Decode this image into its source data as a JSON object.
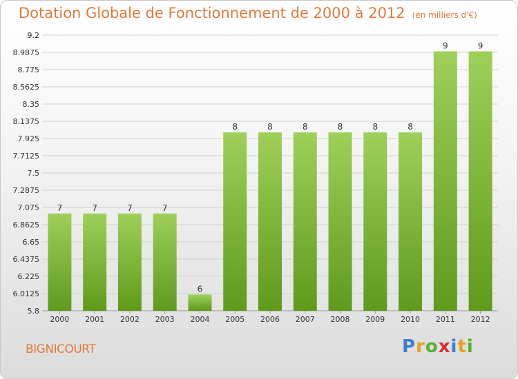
{
  "header": {
    "title": "Dotation Globale de Fonctionnement de 2000 à 2012",
    "unit": "(en milliers d'€)"
  },
  "footer": {
    "commune": "BIGNICOURT",
    "brand": [
      "P",
      "r",
      "o",
      "x",
      "i",
      "t",
      "i"
    ],
    "brand_colors": [
      "#3a7fd0",
      "#e8a020",
      "#58b030",
      "#d83030",
      "#3a7fd0",
      "#e8a020",
      "#58b030"
    ]
  },
  "colors": {
    "title": "#e07a3c",
    "bar_top": "#9ed05a",
    "bar_bottom": "#5f9a1c",
    "grid": "#d0d0d0",
    "axis_text": "#333333"
  },
  "chart_data": {
    "type": "bar",
    "categories": [
      "2000",
      "2001",
      "2002",
      "2003",
      "2004",
      "2005",
      "2006",
      "2007",
      "2008",
      "2009",
      "2010",
      "2011",
      "2012"
    ],
    "values": [
      7,
      7,
      7,
      7,
      6,
      8,
      8,
      8,
      8,
      8,
      8,
      9,
      9
    ],
    "bar_values": [
      7.0,
      7.0,
      7.0,
      7.0,
      6.0,
      8.0,
      8.0,
      8.0,
      8.0,
      8.0,
      8.0,
      9.0,
      9.0
    ],
    "data_labels": [
      "7",
      "7",
      "7",
      "7",
      "6",
      "8",
      "8",
      "8",
      "8",
      "8",
      "8",
      "9",
      "9"
    ],
    "y_ticks": [
      "5.8",
      "6.0125",
      "6.225",
      "6.4375",
      "6.65",
      "6.8625",
      "7.075",
      "7.2875",
      "7.5",
      "7.7125",
      "7.925",
      "8.1375",
      "8.35",
      "8.5625",
      "8.775",
      "8.9875",
      "9.2"
    ],
    "ylim": [
      5.8,
      9.2
    ],
    "grid": true,
    "legend": "none"
  }
}
